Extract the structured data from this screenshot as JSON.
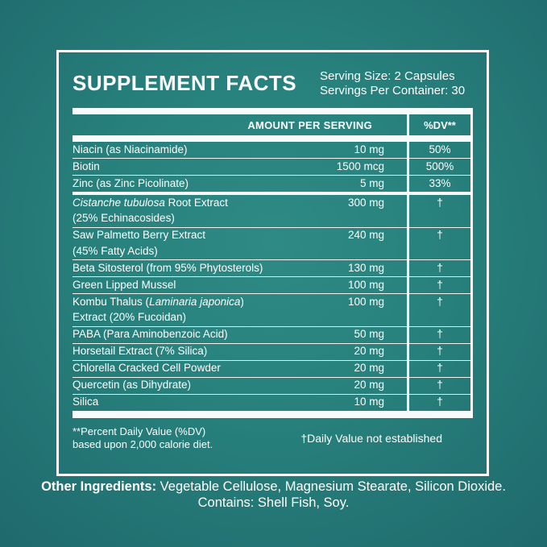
{
  "colors": {
    "bg_center": "#2e8a85",
    "bg_mid": "#27807c",
    "bg_edge": "#1f696c",
    "text": "#ffffff",
    "line": "#f6fcfb"
  },
  "header": {
    "title": "SUPPLEMENT FACTS",
    "serving_size": "Serving Size: 2 Capsules",
    "servings_per_container": "Servings Per Container: 30"
  },
  "table": {
    "amount_header": "AMOUNT PER SERVING",
    "dv_header": "%DV**",
    "rows": [
      {
        "name": [
          {
            "t": "Niacin (as Niacinamide)"
          }
        ],
        "amount": "10 mg",
        "dv": "50%"
      },
      {
        "name": [
          {
            "t": "Biotin"
          }
        ],
        "amount": "1500 mcg",
        "dv": "500%"
      },
      {
        "name": [
          {
            "t": "Zinc (as Zinc Picolinate)"
          }
        ],
        "amount": "5 mg",
        "dv": "33%",
        "divider_after": "medium"
      },
      {
        "name": [
          {
            "t": "Cistanche tubulosa",
            "i": true
          },
          {
            "t": " Root Extract"
          }
        ],
        "line2": "(25% Echinacosides)",
        "amount": "300 mg",
        "dv": "†"
      },
      {
        "name": [
          {
            "t": "Saw Palmetto Berry Extract"
          }
        ],
        "line2": "(45% Fatty Acids)",
        "amount": "240 mg",
        "dv": "†"
      },
      {
        "name": [
          {
            "t": "Beta Sitosterol (from 95% Phytosterols)"
          }
        ],
        "amount": "130 mg",
        "dv": "†"
      },
      {
        "name": [
          {
            "t": "Green Lipped Mussel"
          }
        ],
        "amount": "100 mg",
        "dv": "†"
      },
      {
        "name": [
          {
            "t": "Kombu Thalus ("
          },
          {
            "t": "Laminaria japonica",
            "i": true
          },
          {
            "t": ")"
          }
        ],
        "line2": "Extract (20% Fucoidan)",
        "amount": "100 mg",
        "dv": "†"
      },
      {
        "name": [
          {
            "t": "PABA (Para Aminobenzoic Acid)"
          }
        ],
        "amount": "50 mg",
        "dv": "†"
      },
      {
        "name": [
          {
            "t": "Horsetail Extract (7% Silica)"
          }
        ],
        "amount": "20 mg",
        "dv": "†"
      },
      {
        "name": [
          {
            "t": "Chlorella Cracked Cell Powder"
          }
        ],
        "amount": "20 mg",
        "dv": "†"
      },
      {
        "name": [
          {
            "t": "Quercetin (as Dihydrate)"
          }
        ],
        "amount": "20 mg",
        "dv": "†"
      },
      {
        "name": [
          {
            "t": "Silica"
          }
        ],
        "amount": "10 mg",
        "dv": "†"
      }
    ]
  },
  "footnotes": {
    "left_line1": "**Percent Daily Value (%DV)",
    "left_line2": "based upon 2,000 calorie diet.",
    "right": "†Daily Value not established"
  },
  "footer": {
    "other_label": "Other Ingredients:",
    "other_text": " Vegetable Cellulose, Magnesium Stearate, Silicon Dioxide.",
    "contains": "Contains: Shell Fish, Soy."
  }
}
